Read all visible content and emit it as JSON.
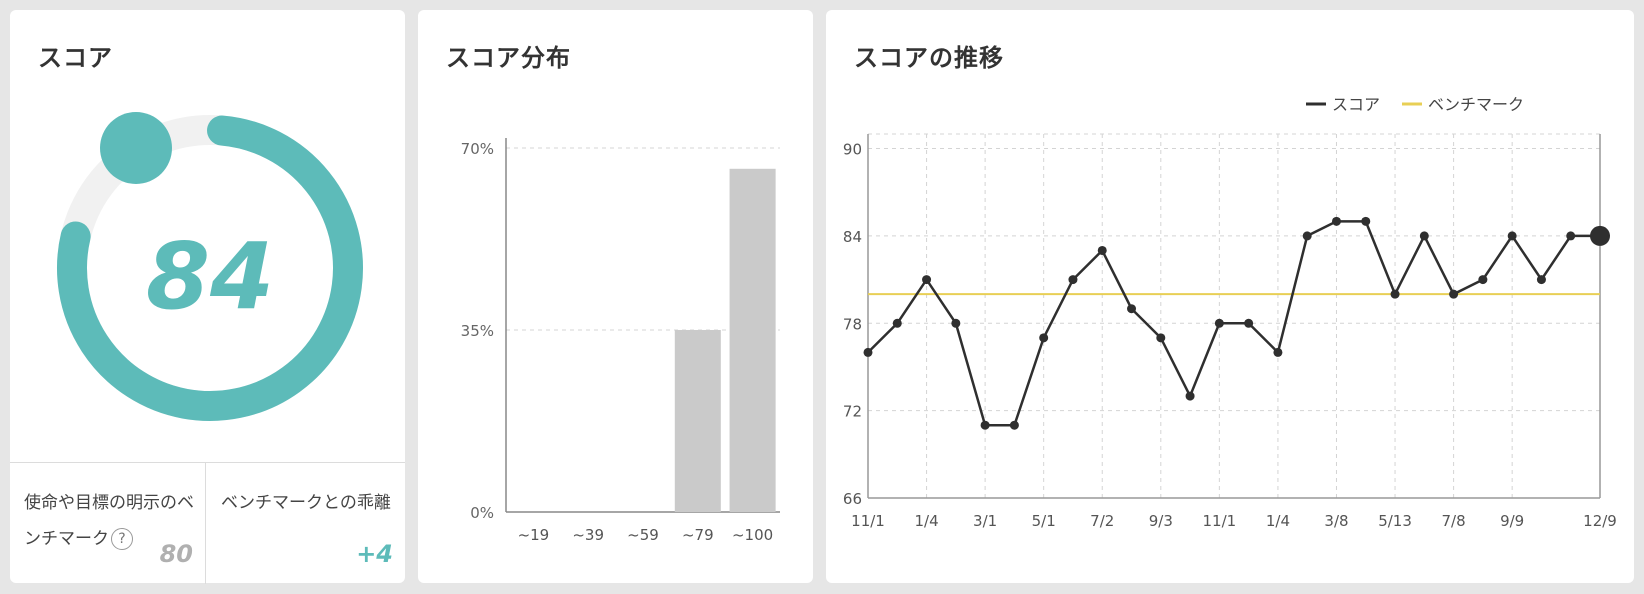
{
  "colors": {
    "accent": "#5dbbb9",
    "gauge_track": "#f1f1f1",
    "bar": "#cacaca",
    "score_line": "#2f2f2f",
    "benchmark_line": "#e8cf55"
  },
  "score_card": {
    "title": "スコア",
    "score": "84",
    "score_fraction": 0.84,
    "benchmark_label": "使命や目標の明示のベンチマーク",
    "help_icon": "?",
    "benchmark_value": "80",
    "gap_label": "ベンチマークとの乖離",
    "gap_value": "+4"
  },
  "distribution_card": {
    "title": "スコア分布"
  },
  "trend_card": {
    "title": "スコアの推移"
  },
  "chart_data": [
    {
      "type": "bar",
      "title": "スコア分布",
      "categories": [
        "~19",
        "~39",
        "~59",
        "~79",
        "~100"
      ],
      "values": [
        0,
        0,
        0,
        35,
        66
      ],
      "ylim": [
        0,
        70
      ],
      "yticks": [
        "0%",
        "35%",
        "70%"
      ],
      "ytick_values": [
        0,
        35,
        70
      ],
      "grid": true
    },
    {
      "type": "line",
      "title": "スコアの推移",
      "x_tick_labels": [
        "11/1",
        "1/4",
        "3/1",
        "5/1",
        "7/2",
        "9/3",
        "11/1",
        "1/4",
        "3/8",
        "5/13",
        "7/8",
        "9/9",
        "12/9"
      ],
      "x_tick_positions": [
        0,
        2,
        4,
        6,
        8,
        10,
        12,
        14,
        16,
        18,
        20,
        22,
        25
      ],
      "yticks": [
        66,
        72,
        78,
        84,
        90
      ],
      "ylim": [
        66,
        91
      ],
      "legend_position": "top-right",
      "grid": true,
      "series": [
        {
          "name": "スコア",
          "values": [
            76,
            78,
            81,
            78,
            71,
            71,
            77,
            81,
            83,
            79,
            77,
            73,
            78,
            78,
            76,
            84,
            85,
            85,
            80,
            84,
            80,
            81,
            84,
            81,
            84,
            84
          ]
        },
        {
          "name": "ベンチマーク",
          "values": [
            80,
            80,
            80,
            80,
            80,
            80,
            80,
            80,
            80,
            80,
            80,
            80,
            80,
            80,
            80,
            80,
            80,
            80,
            80,
            80,
            80,
            80,
            80,
            80,
            80,
            80
          ]
        }
      ]
    }
  ]
}
